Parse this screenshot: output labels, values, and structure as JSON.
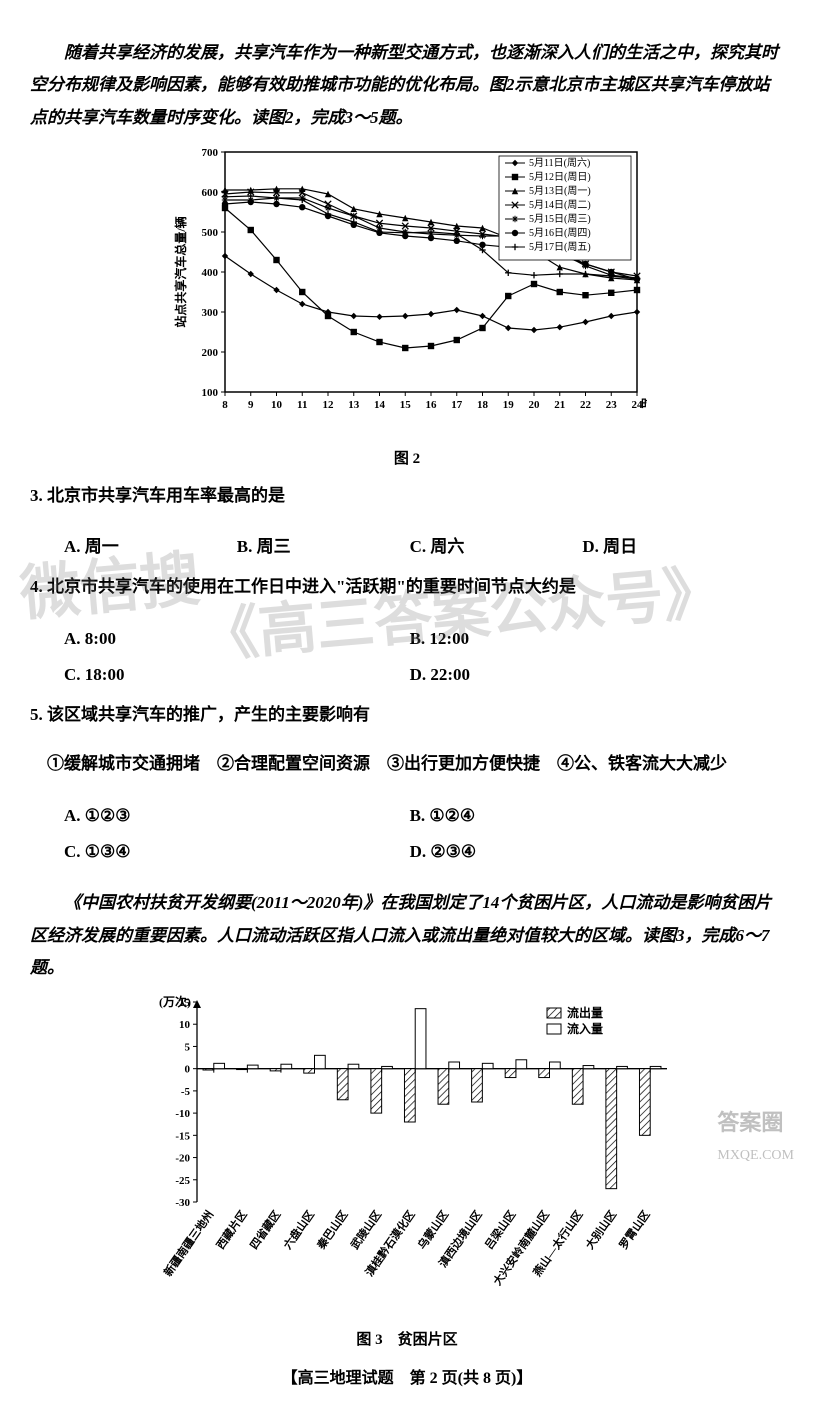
{
  "intro1": "随着共享经济的发展，共享汽车作为一种新型交通方式，也逐渐深入人们的生活之中，探究其时空分布规律及影响因素，能够有效助推城市功能的优化布局。图2示意北京市主城区共享汽车停放站点的共享汽车数量时序变化。读图2，完成3～5题。",
  "chart1": {
    "caption": "图 2",
    "ylabel": "站点共享汽车总量/辆",
    "xlabel": "时间/时",
    "xticks": [
      "8",
      "9",
      "10",
      "11",
      "12",
      "13",
      "14",
      "15",
      "16",
      "17",
      "18",
      "19",
      "20",
      "21",
      "22",
      "23",
      "24"
    ],
    "yticks": [
      "100",
      "200",
      "300",
      "400",
      "500",
      "600",
      "700"
    ],
    "legend": [
      "5月11日(周六)",
      "5月12日(周日)",
      "5月13日(周一)",
      "5月14日(周二)",
      "5月15日(周三)",
      "5月16日(周四)",
      "5月17日(周五)"
    ],
    "ylim": [
      100,
      700
    ],
    "series": {
      "s1": [
        440,
        395,
        355,
        320,
        300,
        290,
        288,
        290,
        295,
        305,
        290,
        260,
        255,
        262,
        275,
        290,
        300
      ],
      "s2": [
        560,
        505,
        430,
        350,
        290,
        250,
        225,
        210,
        215,
        230,
        260,
        340,
        370,
        350,
        342,
        348,
        355
      ],
      "s3": [
        605,
        605,
        608,
        608,
        595,
        558,
        545,
        535,
        525,
        515,
        510,
        485,
        452,
        412,
        395,
        385,
        380
      ],
      "s4": [
        595,
        600,
        598,
        598,
        570,
        540,
        522,
        515,
        510,
        502,
        495,
        487,
        470,
        450,
        420,
        400,
        390
      ],
      "s5": [
        580,
        580,
        585,
        585,
        560,
        540,
        510,
        500,
        495,
        492,
        490,
        490,
        465,
        450,
        415,
        392,
        385
      ],
      "s6": [
        570,
        575,
        570,
        562,
        540,
        518,
        498,
        490,
        485,
        478,
        468,
        462,
        455,
        442,
        420,
        400,
        382
      ],
      "s7": [
        588,
        590,
        585,
        580,
        545,
        525,
        500,
        498,
        500,
        495,
        455,
        398,
        392,
        395,
        395,
        390,
        382
      ]
    },
    "markers": [
      "diamond",
      "square",
      "triangle",
      "x",
      "star",
      "circle",
      "plus"
    ],
    "line_color": "#000000",
    "grid_color": "#000000",
    "background": "#ffffff"
  },
  "q3": {
    "stem": "3. 北京市共享汽车用车率最高的是",
    "A": "A. 周一",
    "B": "B. 周三",
    "C": "C. 周六",
    "D": "D. 周日"
  },
  "q4": {
    "stem": "4. 北京市共享汽车的使用在工作日中进入\"活跃期\"的重要时间节点大约是",
    "A": "A. 8:00",
    "B": "B. 12:00",
    "C": "C. 18:00",
    "D": "D. 22:00"
  },
  "q5": {
    "stem": "5. 该区域共享汽车的推广，产生的主要影响有",
    "items": "①缓解城市交通拥堵　②合理配置空间资源　③出行更加方便快捷　④公、铁客流大大减少",
    "A": "A. ①②③",
    "B": "B. ①②④",
    "C": "C. ①③④",
    "D": "D. ②③④"
  },
  "intro2": "《中国农村扶贫开发纲要(2011～2020年)》在我国划定了14个贫困片区，人口流动是影响贫困片区经济发展的重要因素。人口流动活跃区指人口流入或流出量绝对值较大的区域。读图3，完成6～7题。",
  "chart2": {
    "caption": "图 3　贫困片区",
    "ylabel": "(万次)",
    "yticks": [
      "15",
      "10",
      "5",
      "0",
      "-5",
      "-10",
      "-15",
      "-20",
      "-25",
      "-30"
    ],
    "ylim": [
      -30,
      15
    ],
    "legend": [
      "流出量",
      "流入量"
    ],
    "categories": [
      "新疆南疆三地州",
      "西藏片区",
      "四省藏区",
      "六盘山区",
      "秦巴山区",
      "武陵山区",
      "滇桂黔石漠化区",
      "乌蒙山区",
      "滇西边境山区",
      "吕梁山区",
      "大兴安岭南麓山区",
      "燕山—太行山区",
      "大别山区",
      "罗霄山区"
    ],
    "outflow": [
      -0.3,
      -0.2,
      -0.5,
      -1,
      -7,
      -10,
      -12,
      -8,
      -7.5,
      -2,
      -2,
      -8,
      -27,
      -15
    ],
    "inflow": [
      1.2,
      0.8,
      1,
      3,
      1,
      0.5,
      13.5,
      1.5,
      1.2,
      2,
      1.5,
      0.7,
      0.5,
      0.5
    ],
    "outflow_fill": "hatch",
    "inflow_fill": "#ffffff",
    "border_color": "#000000"
  },
  "footer": "【高三地理试题　第 2 页(共 8 页)】",
  "watermark1": "微信搜",
  "watermark2": "《高三答案公众号》",
  "corner1": "答案圈",
  "corner2": "MXQE.COM"
}
